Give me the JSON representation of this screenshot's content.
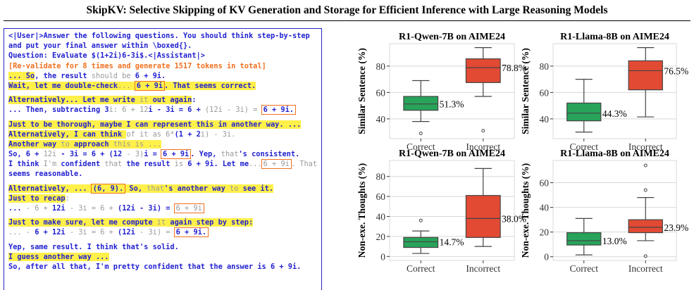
{
  "title": "SkipKV: Selective Skipping of KV Generation and Storage for Efficient Inference with Large Reasoning Models",
  "transcript": {
    "lines": [
      {
        "segments": [
          {
            "text": "<|User|>Answer the following questions. You should think step-by-step",
            "color": "#1f1fd0"
          }
        ]
      },
      {
        "segments": [
          {
            "text": "and put your final answer within \\boxed{}.",
            "color": "#1f1fd0"
          }
        ]
      },
      {
        "segments": [
          {
            "text": "Question: Evaluate $(1+2i)6-3i$.<|Assistant|>",
            "color": "#1f1fd0"
          }
        ]
      },
      {
        "segments": [
          {
            "text": "[Re-validate for 8 times and generate 1517 tokens in total]",
            "color": "#f07020"
          }
        ]
      },
      {
        "segments": [
          {
            "text": "... So",
            "color": "#1f1fd0",
            "hl": true
          },
          {
            "text": ", the result ",
            "color": "#1f1fd0"
          },
          {
            "text": "should be",
            "color": "#9a9a9a",
            "weight": "normal"
          },
          {
            "text": " 6 + 9i.",
            "color": "#1f1fd0"
          }
        ]
      },
      {
        "segments": [
          {
            "text": "Wait, let me double-check",
            "color": "#1f1fd0",
            "hl": true
          },
          {
            "text": "... ",
            "color": "#9a9a9a",
            "weight": "normal",
            "hl": true
          },
          {
            "text": "6 + 9i",
            "color": "#1f1fd0",
            "hl": true,
            "box": true
          },
          {
            "text": ". That seems correct.",
            "color": "#1f1fd0",
            "hl": true
          }
        ]
      },
      {
        "segments": []
      },
      {
        "segments": [
          {
            "text": "Alternatively... Let me write ",
            "color": "#1f1fd0",
            "hl": true
          },
          {
            "text": "it",
            "color": "#9a9a9a",
            "weight": "normal",
            "hl": true
          },
          {
            "text": " out again",
            "color": "#1f1fd0",
            "hl": true
          },
          {
            "text": ":",
            "color": "#1f1fd0"
          }
        ]
      },
      {
        "segments": [
          {
            "text": "... Then, subtracting 3",
            "color": "#1f1fd0"
          },
          {
            "text": "i: 6 + 12",
            "color": "#9a9a9a",
            "weight": "normal"
          },
          {
            "text": "i - 3i = 6 + ",
            "color": "#1f1fd0"
          },
          {
            "text": "(12i - 3i) = ",
            "color": "#9a9a9a",
            "weight": "normal"
          },
          {
            "text": "6 + 9i.",
            "color": "#1f1fd0",
            "box": true
          }
        ]
      },
      {
        "segments": []
      },
      {
        "segments": [
          {
            "text": "Just to be thorough, maybe I can represent this in another way. ...",
            "color": "#1f1fd0",
            "hl": true
          }
        ]
      },
      {
        "segments": [
          {
            "text": "Alternatively, I can think ",
            "color": "#1f1fd0",
            "hl": true
          },
          {
            "text": "of it as 6*",
            "color": "#9a9a9a",
            "weight": "normal"
          },
          {
            "text": "(1 + 2",
            "color": "#1f1fd0"
          },
          {
            "text": "i) - 3i.",
            "color": "#9a9a9a",
            "weight": "normal"
          }
        ]
      },
      {
        "segments": [
          {
            "text": "Another way ",
            "color": "#1f1fd0",
            "hl": true
          },
          {
            "text": "to",
            "color": "#9a9a9a",
            "weight": "normal",
            "hl": true
          },
          {
            "text": " approach ",
            "color": "#1f1fd0",
            "hl": true
          },
          {
            "text": "this is ...",
            "color": "#9a9a9a",
            "weight": "normal",
            "hl": true
          }
        ]
      },
      {
        "segments": [
          {
            "text": "So, 6 + ",
            "color": "#1f1fd0"
          },
          {
            "text": "12i",
            "color": "#9a9a9a",
            "weight": "normal"
          },
          {
            "text": " - 3i = 6 + (12 ",
            "color": "#1f1fd0"
          },
          {
            "text": "- 3)",
            "color": "#9a9a9a",
            "weight": "normal"
          },
          {
            "text": "i = ",
            "color": "#1f1fd0"
          },
          {
            "text": "6 + 9i",
            "color": "#1f1fd0",
            "box": true
          },
          {
            "text": ". Yep, ",
            "color": "#1f1fd0"
          },
          {
            "text": "that",
            "color": "#9a9a9a",
            "weight": "normal"
          },
          {
            "text": "'s consistent.",
            "color": "#1f1fd0"
          }
        ]
      },
      {
        "segments": [
          {
            "text": "I think ",
            "color": "#1f1fd0"
          },
          {
            "text": "I'm",
            "color": "#9a9a9a",
            "weight": "normal"
          },
          {
            "text": " confident ",
            "color": "#1f1fd0"
          },
          {
            "text": "that",
            "color": "#9a9a9a",
            "weight": "normal"
          },
          {
            "text": " the result ",
            "color": "#1f1fd0"
          },
          {
            "text": "is",
            "color": "#9a9a9a",
            "weight": "normal"
          },
          {
            "text": " 6 + 9i. Let me",
            "color": "#1f1fd0"
          },
          {
            "text": "...",
            "color": "#9a9a9a",
            "weight": "normal"
          },
          {
            "text": "6 + 9i",
            "color": "#9a9a9a",
            "weight": "normal",
            "box": true
          },
          {
            "text": ". That",
            "color": "#9a9a9a",
            "weight": "normal"
          }
        ]
      },
      {
        "segments": [
          {
            "text": "seems reasonable.",
            "color": "#1f1fd0"
          }
        ]
      },
      {
        "segments": []
      },
      {
        "segments": [
          {
            "text": "Alternatively, ... ",
            "color": "#1f1fd0",
            "hl": true
          },
          {
            "text": "(6, 9).",
            "color": "#1f1fd0",
            "hl": true,
            "box": true
          },
          {
            "text": " So, ",
            "color": "#1f1fd0",
            "hl": true
          },
          {
            "text": "that",
            "color": "#9a9a9a",
            "weight": "normal",
            "hl": true
          },
          {
            "text": "'s another way ",
            "color": "#1f1fd0",
            "hl": true
          },
          {
            "text": "to",
            "color": "#9a9a9a",
            "weight": "normal",
            "hl": true
          },
          {
            "text": " see it.",
            "color": "#1f1fd0",
            "hl": true
          }
        ]
      },
      {
        "segments": [
          {
            "text": "Just to recap",
            "color": "#1f1fd0",
            "hl": true
          },
          {
            "text": ":",
            "color": "#9a9a9a",
            "weight": "normal"
          }
        ]
      },
      {
        "segments": [
          {
            "text": "... ",
            "color": "#1f1fd0"
          },
          {
            "text": "- 6 + ",
            "color": "#9a9a9a",
            "weight": "normal"
          },
          {
            "text": "12i",
            "color": "#1f1fd0"
          },
          {
            "text": " - 3i = 6 + ",
            "color": "#9a9a9a",
            "weight": "normal"
          },
          {
            "text": "(12i - 3i) = ",
            "color": "#1f1fd0"
          },
          {
            "text": "6 + 9i",
            "color": "#9a9a9a",
            "weight": "normal",
            "box": true
          }
        ]
      },
      {
        "segments": []
      },
      {
        "segments": [
          {
            "text": "Just to make sure, let me compute ",
            "color": "#1f1fd0",
            "hl": true
          },
          {
            "text": "it",
            "color": "#9a9a9a",
            "weight": "normal",
            "hl": true
          },
          {
            "text": " again step by step:",
            "color": "#1f1fd0",
            "hl": true
          }
        ]
      },
      {
        "segments": [
          {
            "text": "... - ",
            "color": "#9a9a9a",
            "weight": "normal"
          },
          {
            "text": "6 + ",
            "color": "#1f1fd0"
          },
          {
            "text": "12i",
            "color": "#1f1fd0"
          },
          {
            "text": " - 3i = 6 + ",
            "color": "#9a9a9a",
            "weight": "normal"
          },
          {
            "text": "(12i",
            "color": "#1f1fd0"
          },
          {
            "text": " - 3i) = ",
            "color": "#9a9a9a",
            "weight": "normal"
          },
          {
            "text": "6 + 9i.",
            "color": "#1f1fd0",
            "box": true
          }
        ]
      },
      {
        "segments": []
      },
      {
        "segments": [
          {
            "text": "Yep, same result. I think that's solid.",
            "color": "#1f1fd0"
          }
        ]
      },
      {
        "segments": [
          {
            "text": "I guess another way ...",
            "color": "#1f1fd0",
            "hl": true
          }
        ]
      },
      {
        "segments": [
          {
            "text": "So, after all that, I'm pretty confident that the answer is 6 + 9i.",
            "color": "#1f1fd0"
          }
        ]
      }
    ]
  },
  "chart_data": [
    {
      "type": "box",
      "title": "R1-Qwen-7B on AIME24",
      "y_label": "Similar Sentence (%)",
      "categories": [
        "Correct",
        "Incorrect"
      ],
      "ylim": [
        25,
        97
      ],
      "yticks": [
        40,
        60,
        80
      ],
      "grid": true,
      "boxes": [
        {
          "color": "#27a35a",
          "whislo": 38,
          "q1": 46.5,
          "median": 51.3,
          "q3": 57,
          "whishi": 69,
          "fliers": [
            29
          ],
          "median_label": "51.3%"
        },
        {
          "color": "#e24a33",
          "whislo": 57,
          "q1": 67.5,
          "median": 78.8,
          "q3": 85.5,
          "whishi": 94,
          "fliers": [
            31
          ],
          "median_label": "78.8%"
        }
      ]
    },
    {
      "type": "box",
      "title": "R1-Llama-8B on AIME24",
      "y_label": "Similar Sentence (%)",
      "categories": [
        "Correct",
        "Incorrect"
      ],
      "ylim": [
        25,
        97
      ],
      "yticks": [
        40,
        60,
        80
      ],
      "grid": true,
      "boxes": [
        {
          "color": "#27a35a",
          "whislo": 30,
          "q1": 38.5,
          "median": 44.3,
          "q3": 52,
          "whishi": 70,
          "fliers": [],
          "median_label": "44.3%"
        },
        {
          "color": "#e24a33",
          "whislo": 41.5,
          "q1": 62,
          "median": 76.5,
          "q3": 84,
          "whishi": 94,
          "fliers": [],
          "median_label": "76.5%"
        }
      ]
    },
    {
      "type": "box",
      "title": "R1-Qwen-7B on AIME24",
      "y_label": "Non-exe. Thoughts (%)",
      "categories": [
        "Correct",
        "Incorrect"
      ],
      "ylim": [
        -4,
        96
      ],
      "yticks": [
        0,
        20,
        40,
        60,
        80
      ],
      "grid": true,
      "boxes": [
        {
          "color": "#27a35a",
          "whislo": 3,
          "q1": 9,
          "median": 14.7,
          "q3": 19,
          "whishi": 25.5,
          "fliers": [
            36
          ],
          "median_label": "14.7%"
        },
        {
          "color": "#e24a33",
          "whislo": 10,
          "q1": 19,
          "median": 38,
          "q3": 61,
          "whishi": 88,
          "fliers": [],
          "median_label": "38.0%"
        }
      ]
    },
    {
      "type": "box",
      "title": "R1-Llama-8B on AIME24",
      "y_label": "Non-exe. Thoughts (%)",
      "categories": [
        "Correct",
        "Incorrect"
      ],
      "ylim": [
        -3,
        78
      ],
      "yticks": [
        0,
        20,
        40,
        60
      ],
      "grid": true,
      "boxes": [
        {
          "color": "#27a35a",
          "whislo": 1.5,
          "q1": 9.5,
          "median": 13,
          "q3": 19.5,
          "whishi": 31,
          "fliers": [],
          "median_label": "13.0%"
        },
        {
          "color": "#e24a33",
          "whislo": 13,
          "q1": 19.5,
          "median": 23.9,
          "q3": 30,
          "whishi": 48,
          "fliers": [
            54,
            74,
            0.5
          ],
          "median_label": "23.9%"
        }
      ]
    }
  ]
}
